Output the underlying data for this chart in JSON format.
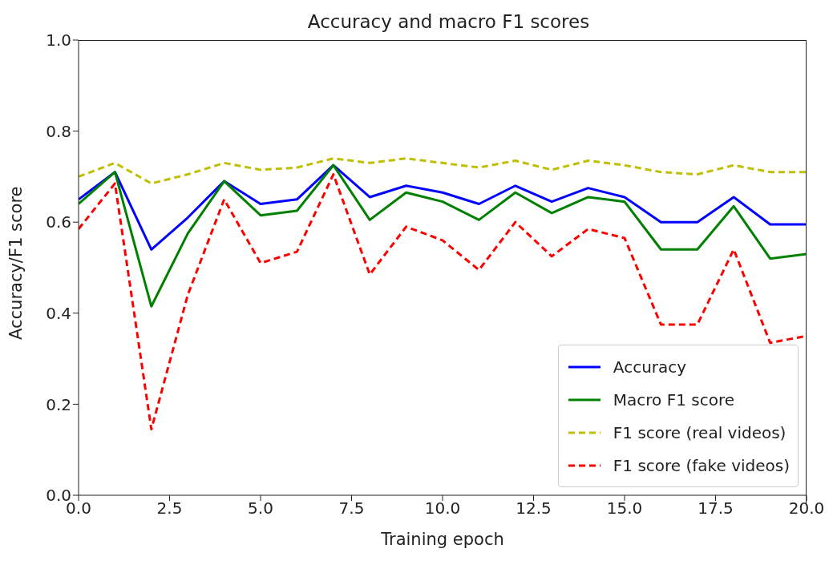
{
  "chart_data": {
    "type": "line",
    "title": "Accuracy and macro F1 scores",
    "xlabel": "Training epoch",
    "ylabel": "Accuracy/F1 score",
    "x": [
      0,
      1,
      2,
      3,
      4,
      5,
      6,
      7,
      8,
      9,
      10,
      11,
      12,
      13,
      14,
      15,
      16,
      17,
      18,
      19,
      20
    ],
    "series": [
      {
        "name": "Accuracy",
        "color": "#0000ff",
        "line_style": "solid",
        "values": [
          0.65,
          0.71,
          0.54,
          0.61,
          0.69,
          0.64,
          0.65,
          0.725,
          0.655,
          0.68,
          0.665,
          0.64,
          0.68,
          0.645,
          0.675,
          0.655,
          0.6,
          0.6,
          0.655,
          0.595,
          0.595
        ]
      },
      {
        "name": "Macro F1 score",
        "color": "#008000",
        "line_style": "solid",
        "values": [
          0.64,
          0.71,
          0.415,
          0.575,
          0.69,
          0.615,
          0.625,
          0.725,
          0.605,
          0.665,
          0.645,
          0.605,
          0.665,
          0.62,
          0.655,
          0.645,
          0.54,
          0.54,
          0.635,
          0.52,
          0.53
        ]
      },
      {
        "name": "F1 score (real videos)",
        "color": "#bfbf00",
        "line_style": "dashed",
        "values": [
          0.7,
          0.73,
          0.685,
          0.705,
          0.73,
          0.715,
          0.72,
          0.74,
          0.73,
          0.74,
          0.73,
          0.72,
          0.735,
          0.715,
          0.735,
          0.725,
          0.71,
          0.705,
          0.725,
          0.71,
          0.71
        ]
      },
      {
        "name": "F1 score (fake videos)",
        "color": "#ff0000",
        "line_style": "dashed",
        "values": [
          0.585,
          0.685,
          0.145,
          0.44,
          0.65,
          0.51,
          0.535,
          0.705,
          0.485,
          0.59,
          0.56,
          0.495,
          0.6,
          0.525,
          0.585,
          0.565,
          0.375,
          0.375,
          0.54,
          0.335,
          0.35
        ]
      }
    ],
    "xlim": [
      0,
      20
    ],
    "xticks": [
      {
        "value": 0,
        "label": "0.0"
      },
      {
        "value": 2.5,
        "label": "2.5"
      },
      {
        "value": 5,
        "label": "5.0"
      },
      {
        "value": 7.5,
        "label": "7.5"
      },
      {
        "value": 10,
        "label": "10.0"
      },
      {
        "value": 12.5,
        "label": "12.5"
      },
      {
        "value": 15,
        "label": "15.0"
      },
      {
        "value": 17.5,
        "label": "17.5"
      },
      {
        "value": 20,
        "label": "20.0"
      }
    ],
    "ylim": [
      0,
      1
    ],
    "yticks": [
      {
        "value": 0,
        "label": "0.0"
      },
      {
        "value": 0.2,
        "label": "0.2"
      },
      {
        "value": 0.4,
        "label": "0.4"
      },
      {
        "value": 0.6,
        "label": "0.6"
      },
      {
        "value": 0.8,
        "label": "0.8"
      },
      {
        "value": 1,
        "label": "1.0"
      }
    ],
    "grid": false,
    "legend": "bottom right",
    "marker": "none"
  }
}
